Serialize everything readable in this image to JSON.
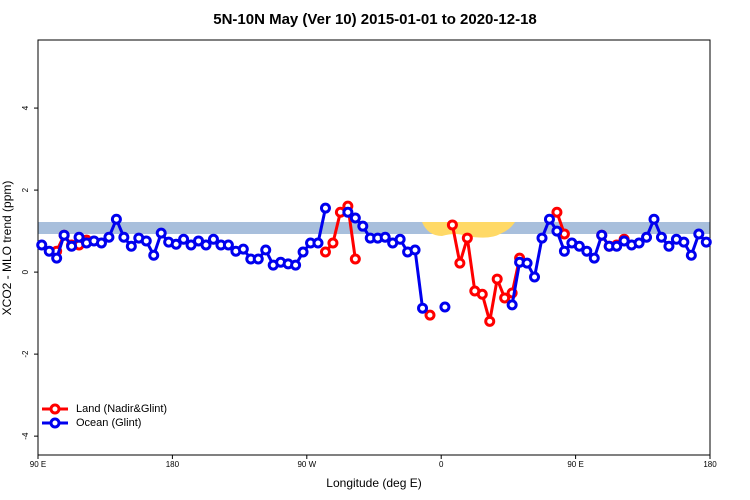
{
  "chart_data": {
    "type": "line",
    "title": "5N-10N May (Ver 10)   2015-01-01 to 2020-12-18",
    "x_label": "Longitude (deg E)",
    "y_label": "XCO2 - MLO trend (ppm)",
    "x": [
      92.5,
      97.5,
      102.5,
      107.5,
      112.5,
      117.5,
      122.5,
      127.5,
      132.5,
      137.5,
      142.5,
      147.5,
      152.5,
      157.5,
      162.5,
      167.5,
      172.5,
      177.5,
      182.5,
      187.5,
      192.5,
      197.5,
      202.5,
      207.5,
      212.5,
      217.5,
      222.5,
      227.5,
      232.5,
      237.5,
      242.5,
      247.5,
      252.5,
      257.5,
      262.5,
      267.5,
      272.5,
      277.5,
      282.5,
      287.5,
      292.5,
      297.5,
      302.5,
      307.5,
      312.5,
      317.5,
      322.5,
      327.5,
      332.5,
      337.5,
      342.5,
      347.5,
      352.5,
      357.5,
      362.5,
      367.5,
      372.5,
      377.5,
      382.5,
      387.5,
      392.5,
      397.5,
      402.5,
      407.5,
      412.5,
      417.5,
      422.5,
      427.5,
      432.5,
      437.5,
      442.5,
      447.5,
      452.5,
      457.5,
      462.5,
      467.5,
      472.5,
      477.5,
      482.5,
      487.5,
      492.5,
      497.5,
      502.5,
      507.5,
      512.5,
      517.5,
      522.5,
      527.5,
      532.5,
      537.5
    ],
    "series": [
      {
        "name": "Land (Nadir&Glint)",
        "color": "#ff0000",
        "values": [
          null,
          null,
          0.51,
          0.9,
          0.66,
          0.66,
          0.78,
          null,
          null,
          null,
          null,
          null,
          null,
          null,
          null,
          null,
          null,
          null,
          null,
          null,
          null,
          null,
          null,
          null,
          null,
          null,
          null,
          null,
          null,
          null,
          null,
          null,
          null,
          null,
          null,
          null,
          null,
          null,
          0.49,
          0.71,
          1.46,
          1.61,
          0.32,
          null,
          null,
          null,
          null,
          null,
          null,
          null,
          null,
          null,
          -1.05,
          null,
          null,
          1.15,
          0.22,
          0.83,
          -0.46,
          -0.54,
          -1.2,
          -0.17,
          -0.63,
          -0.51,
          0.34,
          null,
          null,
          null,
          null,
          1.46,
          0.93,
          null,
          null,
          null,
          null,
          0.9,
          0.63,
          0.66,
          0.8,
          null,
          null,
          null,
          null,
          null,
          null,
          null,
          null,
          null,
          null,
          null
        ]
      },
      {
        "name": "Ocean (Glint)",
        "color": "#0000ee",
        "values": [
          0.66,
          0.51,
          0.34,
          0.9,
          0.63,
          0.85,
          0.71,
          0.76,
          0.71,
          0.85,
          1.29,
          0.85,
          0.63,
          0.83,
          0.76,
          0.41,
          0.95,
          0.73,
          0.68,
          0.8,
          0.66,
          0.76,
          0.66,
          0.8,
          0.66,
          0.66,
          0.51,
          0.56,
          0.32,
          0.32,
          0.54,
          0.17,
          0.24,
          0.2,
          0.17,
          0.49,
          0.71,
          0.71,
          1.56,
          null,
          null,
          1.46,
          1.32,
          1.12,
          0.83,
          0.83,
          0.85,
          0.71,
          0.8,
          0.49,
          0.54,
          -0.88,
          null,
          null,
          -0.85,
          null,
          null,
          null,
          null,
          null,
          null,
          null,
          null,
          -0.8,
          0.24,
          0.22,
          -0.12,
          0.83,
          1.29,
          1.0,
          0.51,
          0.71,
          0.63,
          0.51,
          0.34,
          0.9,
          0.63,
          0.63,
          0.76,
          0.66,
          0.71,
          0.85,
          1.29,
          0.85,
          0.63,
          0.8,
          0.73,
          0.41,
          0.93,
          0.73
        ]
      }
    ],
    "xlim": [
      90,
      540
    ],
    "xticks": [
      {
        "value": 90,
        "label": "90 E"
      },
      180,
      {
        "value": 270,
        "label": "90 W"
      },
      {
        "value": 360,
        "label": "0"
      },
      {
        "value": 450,
        "label": "90 E"
      },
      {
        "value": 540,
        "label": "180"
      }
    ],
    "ylim": [
      -4.46,
      5.66
    ],
    "yticks": [
      -4,
      -2,
      0,
      2,
      4
    ],
    "legend": "bottomleft"
  }
}
